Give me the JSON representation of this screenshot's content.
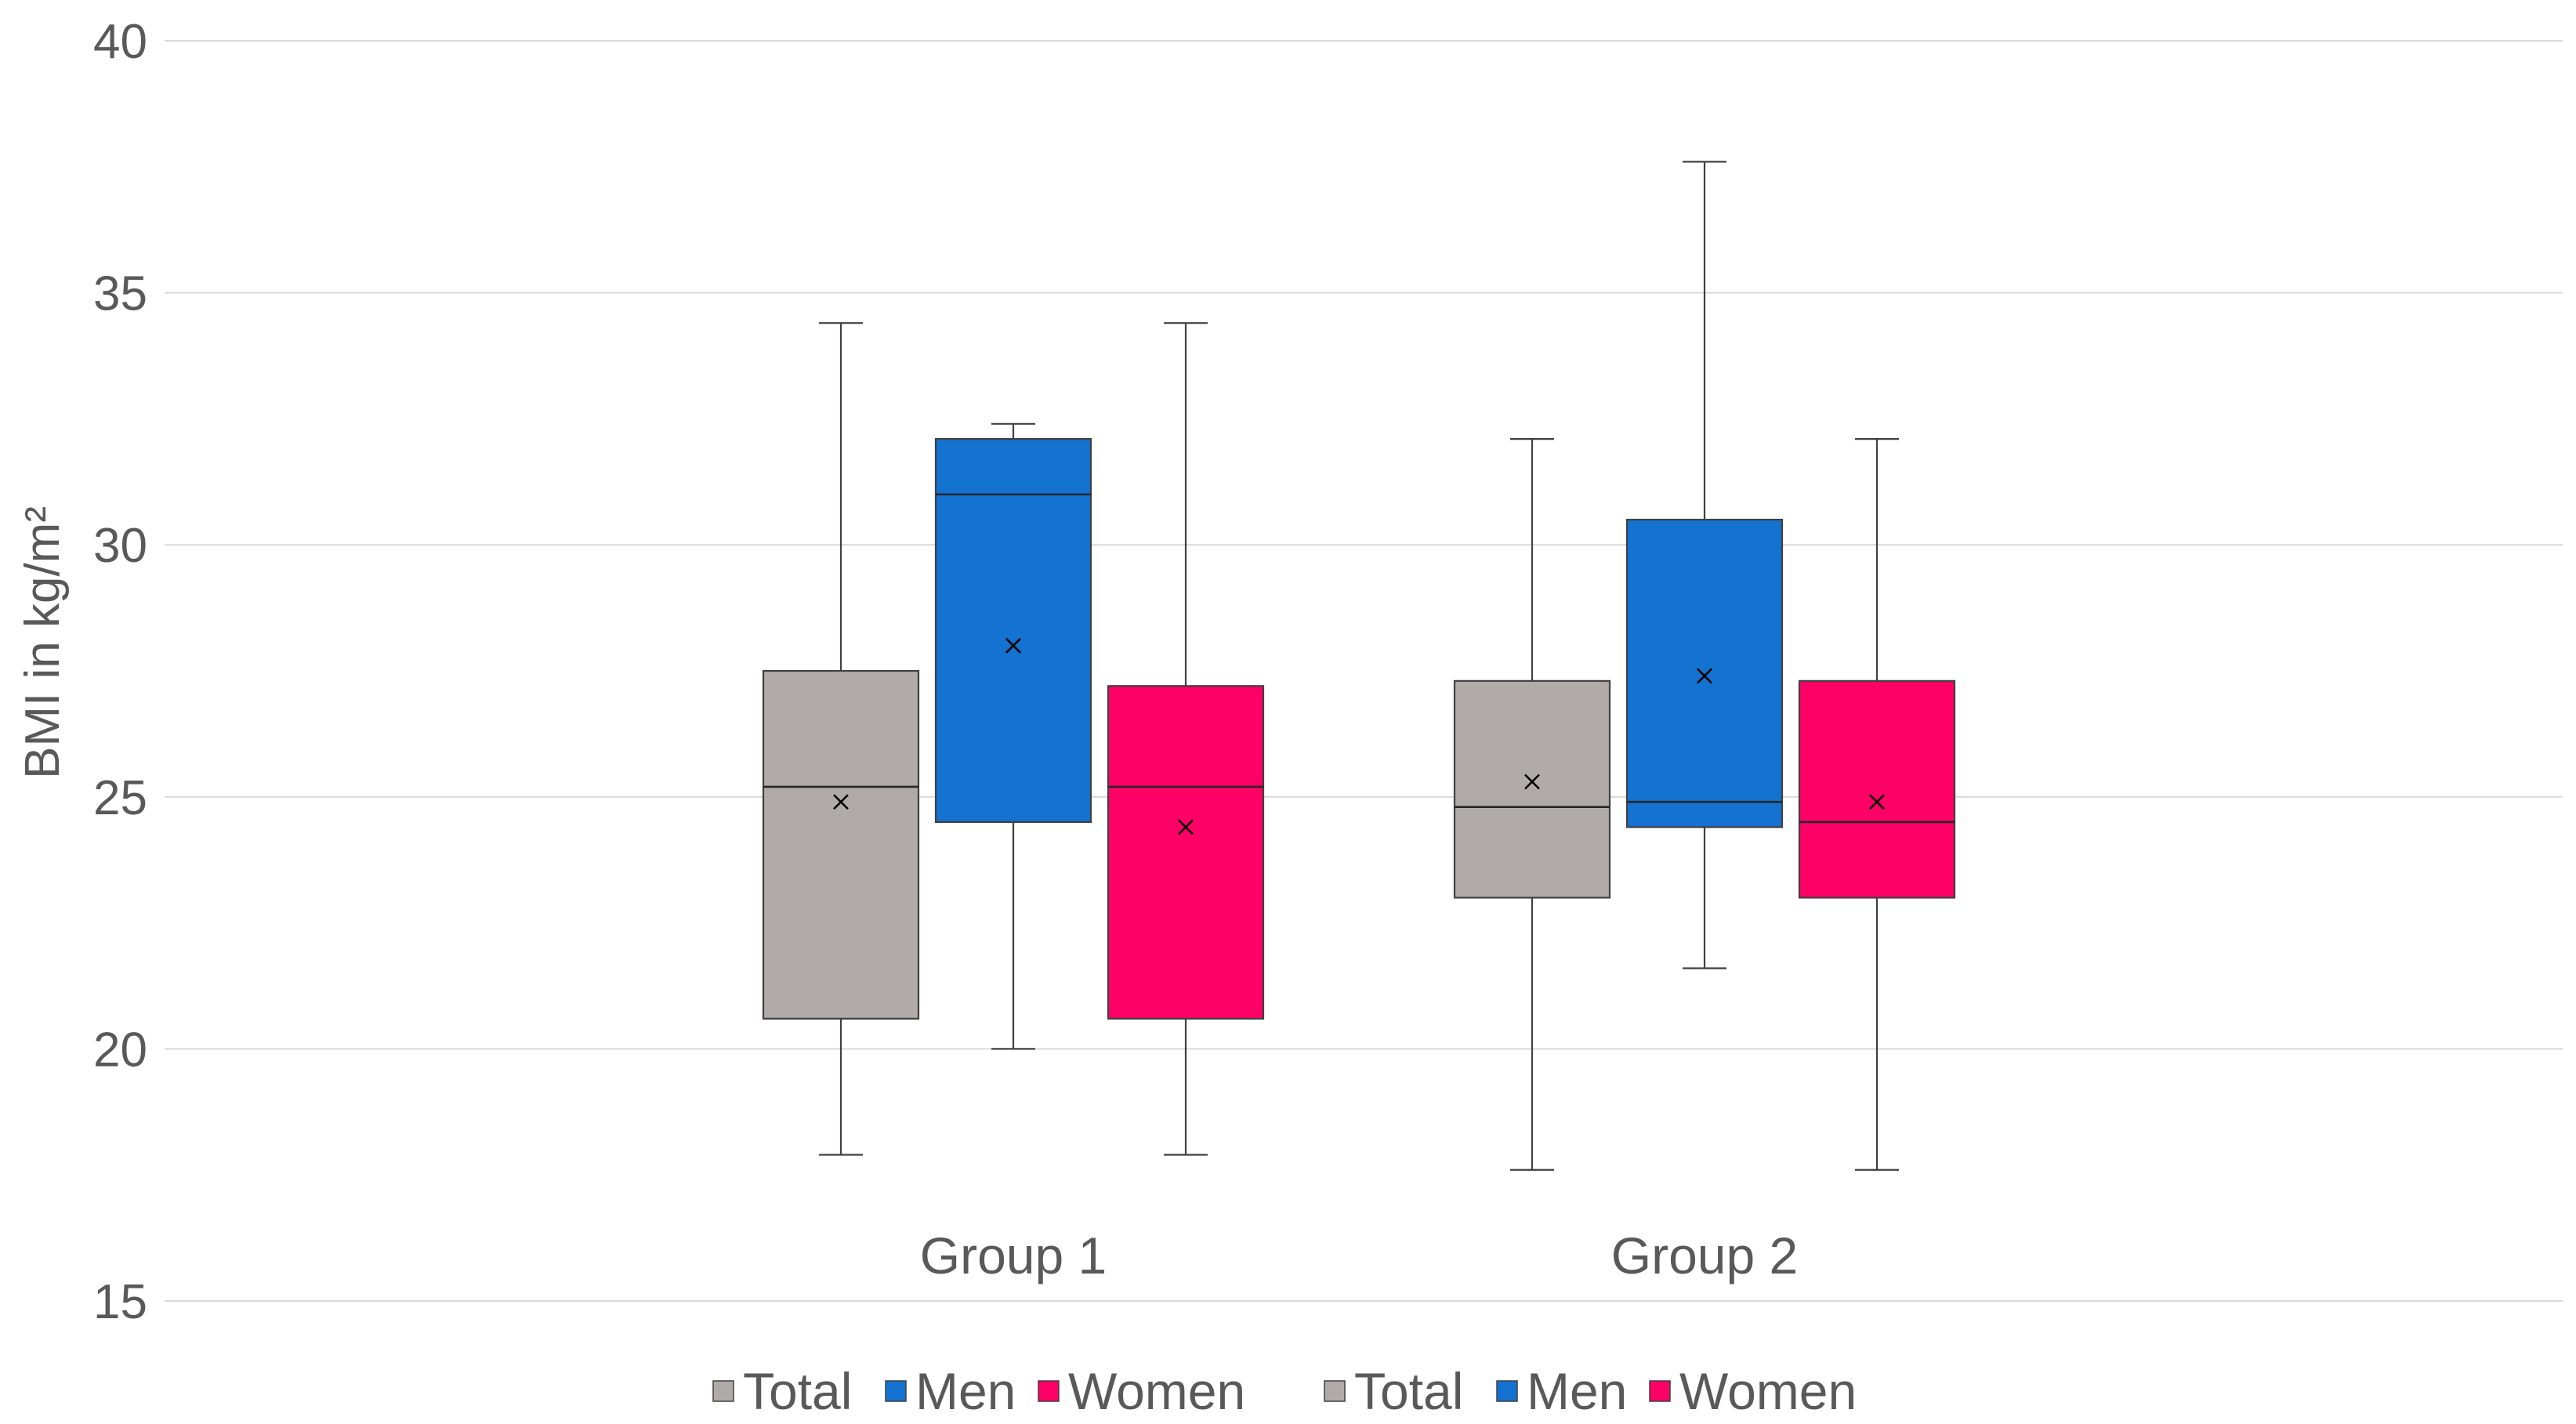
{
  "chart_data": {
    "type": "box",
    "ylabel": "BMI in kg/m²",
    "xlabel": "",
    "ylim": [
      15,
      40
    ],
    "yticks": [
      15,
      20,
      25,
      30,
      35,
      40
    ],
    "grid": true,
    "legend_position": "bottom",
    "categories": [
      "Group 1",
      "Group 2"
    ],
    "series_colors": {
      "Total": "#b0aba8",
      "Men": "#1472d0",
      "Women": "#ff0066"
    },
    "groups": [
      {
        "category": "Group 1",
        "boxes": [
          {
            "series": "Total",
            "whisker_low": 17.9,
            "q1": 20.6,
            "median": 25.2,
            "q3": 27.5,
            "whisker_high": 34.4,
            "mean": 24.9
          },
          {
            "series": "Men",
            "whisker_low": 20.0,
            "q1": 24.5,
            "median": 31.0,
            "q3": 32.1,
            "whisker_high": 32.4,
            "mean": 28.0
          },
          {
            "series": "Women",
            "whisker_low": 17.9,
            "q1": 20.6,
            "median": 25.2,
            "q3": 27.2,
            "whisker_high": 34.4,
            "mean": 24.4
          }
        ],
        "legend": [
          "Total",
          "Men",
          "Women"
        ]
      },
      {
        "category": "Group 2",
        "boxes": [
          {
            "series": "Total",
            "whisker_low": 17.6,
            "q1": 23.0,
            "median": 24.8,
            "q3": 27.3,
            "whisker_high": 32.1,
            "mean": 25.3
          },
          {
            "series": "Men",
            "whisker_low": 21.6,
            "q1": 24.4,
            "median": 24.9,
            "q3": 30.5,
            "whisker_high": 37.6,
            "mean": 27.4
          },
          {
            "series": "Women",
            "whisker_low": 17.6,
            "q1": 23.0,
            "median": 24.5,
            "q3": 27.3,
            "whisker_high": 32.1,
            "mean": 24.9
          }
        ],
        "legend": [
          "Total",
          "Men",
          "Women"
        ]
      }
    ]
  }
}
